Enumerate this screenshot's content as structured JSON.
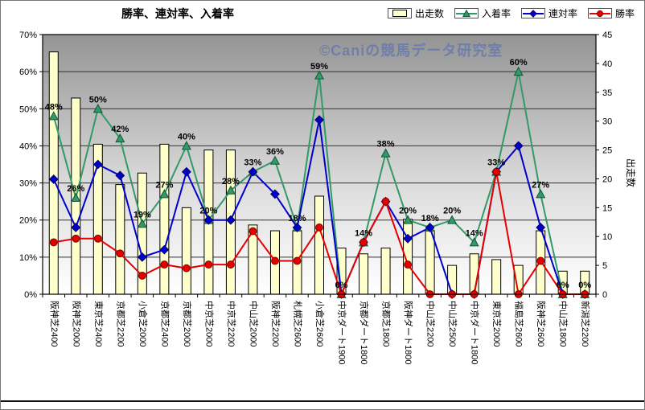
{
  "header": {
    "title": "勝率、連対率、入着率",
    "watermark": "©Caniの競馬データ研究室"
  },
  "legend": {
    "items": [
      {
        "label": "出走数",
        "key": "starts",
        "swatch": "bar"
      },
      {
        "label": "入着率",
        "key": "place-rate",
        "swatch": "triangle"
      },
      {
        "label": "連対率",
        "key": "quinella-rate",
        "swatch": "diamond"
      },
      {
        "label": "勝率",
        "key": "win-rate",
        "swatch": "circle"
      }
    ]
  },
  "chart_data": {
    "type": "bar",
    "subtype": "combo bar + 3 line series",
    "title": "勝率、連対率、入着率",
    "categories": [
      "阪神芝2400",
      "阪神芝2000",
      "東京芝2400",
      "京都芝2200",
      "小倉芝2000",
      "京都芝2400",
      "京都芝2000",
      "中京芝2000",
      "中京芝2200",
      "中山芝2000",
      "阪神芝2200",
      "札幌芝2600",
      "小倉芝2600",
      "中京ダート1900",
      "京都ダート1800",
      "京都芝1800",
      "阪神ダート1800",
      "中山芝2200",
      "中山芝2500",
      "中京ダート1800",
      "東京芝2000",
      "福島芝2600",
      "阪神芝2600",
      "中山芝1800",
      "新潟芝2200"
    ],
    "series": [
      {
        "name": "出走数",
        "key": "starts",
        "chart": "bar",
        "axis": "right",
        "color": "#ffffcc",
        "border": "#000000",
        "values": [
          42,
          34,
          26,
          19,
          21,
          26,
          15,
          25,
          25,
          12,
          11,
          11,
          17,
          8,
          7,
          8,
          13,
          11,
          5,
          7,
          6,
          5,
          11,
          4,
          4
        ]
      },
      {
        "name": "入着率",
        "key": "place-rate",
        "chart": "line",
        "marker": "triangle",
        "axis": "left",
        "color": "#339966",
        "data_labels": true,
        "values": [
          48,
          26,
          50,
          42,
          19,
          27,
          40,
          20,
          28,
          33,
          36,
          18,
          59,
          0,
          14,
          38,
          20,
          18,
          20,
          14,
          33,
          60,
          27,
          0,
          0
        ]
      },
      {
        "name": "連対率",
        "key": "quinella-rate",
        "chart": "line",
        "marker": "diamond",
        "axis": "left",
        "color": "#0000cc",
        "data_labels": false,
        "values": [
          31,
          18,
          35,
          32,
          10,
          12,
          33,
          20,
          20,
          33,
          27,
          18,
          47,
          0,
          14,
          25,
          15,
          18,
          0,
          0,
          33,
          40,
          18,
          0,
          0
        ]
      },
      {
        "name": "勝率",
        "key": "win-rate",
        "chart": "line",
        "marker": "circle",
        "axis": "left",
        "color": "#e60000",
        "data_labels": false,
        "values": [
          14,
          15,
          15,
          11,
          5,
          8,
          7,
          8,
          8,
          17,
          9,
          9,
          18,
          0,
          14,
          25,
          8,
          0,
          0,
          0,
          33,
          0,
          9,
          0,
          0
        ]
      }
    ],
    "left_axis": {
      "min": 0,
      "max": 70,
      "step": 10,
      "unit": "%",
      "ticks": [
        "0%",
        "10%",
        "20%",
        "30%",
        "40%",
        "50%",
        "60%",
        "70%"
      ]
    },
    "right_axis": {
      "min": 0,
      "max": 45,
      "step": 5,
      "title": "出走数",
      "ticks": [
        "0",
        "5",
        "10",
        "15",
        "20",
        "25",
        "30",
        "35",
        "40",
        "45"
      ]
    },
    "grid": "horizontal",
    "legend_position": "top-right",
    "plot_background": "gray gradient, dark top to white bottom"
  }
}
